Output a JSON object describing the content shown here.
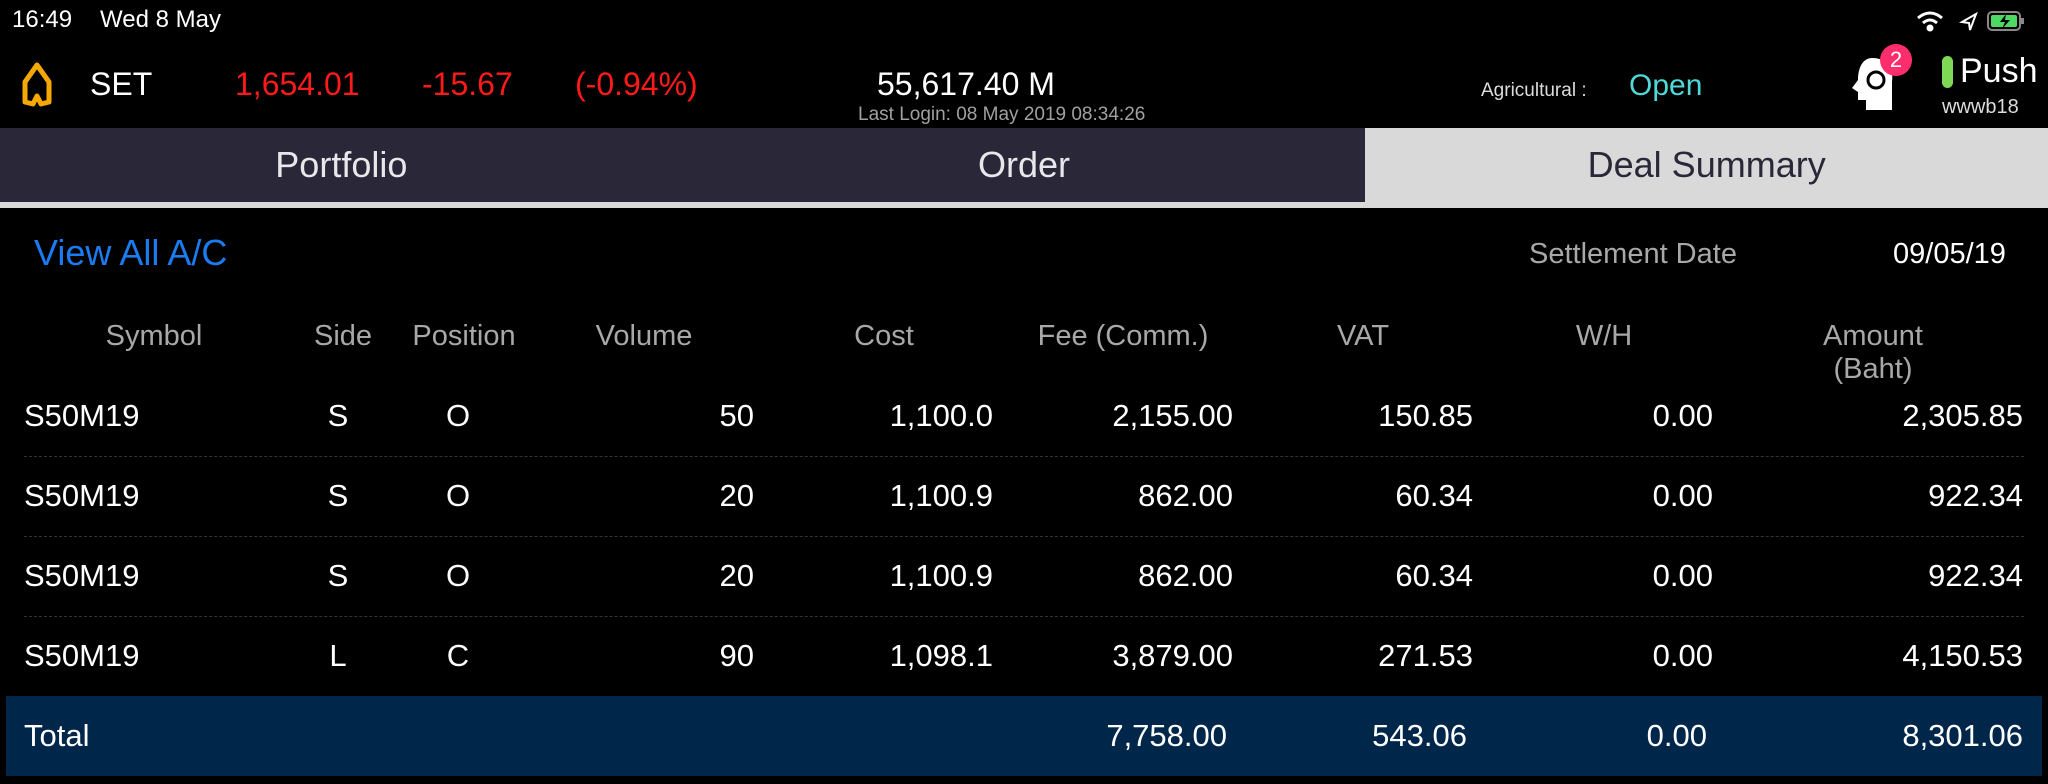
{
  "status_bar": {
    "time": "16:49",
    "date": "Wed 8 May",
    "icons": [
      "wifi-icon",
      "location-arrow-icon",
      "battery-charging-icon"
    ]
  },
  "header": {
    "index_name": "SET",
    "index_value": "1,654.01",
    "change": "-15.67",
    "change_pct": "(-0.94%)",
    "value": "55,617.40 M",
    "last_login": "Last Login: 08 May 2019 08:34:26",
    "market_label": "Agricultural :",
    "market_status": "Open",
    "notification_count": "2",
    "push_label": "Push",
    "username": "wwwb18",
    "colors": {
      "negative": "#ff1a1a",
      "open": "#4fd8d8",
      "link": "#1a7cf0",
      "push_indicator": "#7ed957",
      "badge": "#ff2d6b",
      "logo": "#f5a800"
    }
  },
  "tabs": [
    {
      "label": "Portfolio",
      "active": false
    },
    {
      "label": "Order",
      "active": false
    },
    {
      "label": "Deal Summary",
      "active": true
    }
  ],
  "summary": {
    "view_all_label": "View All A/C",
    "settlement_label": "Settlement Date",
    "settlement_date": "09/05/19"
  },
  "table": {
    "columns": [
      "Symbol",
      "Side",
      "Position",
      "Volume",
      "Cost",
      "Fee (Comm.)",
      "VAT",
      "W/H",
      "Amount (Baht)"
    ],
    "rows": [
      [
        "S50M19",
        "S",
        "O",
        "50",
        "1,100.0",
        "2,155.00",
        "150.85",
        "0.00",
        "2,305.85"
      ],
      [
        "S50M19",
        "S",
        "O",
        "20",
        "1,100.9",
        "862.00",
        "60.34",
        "0.00",
        "922.34"
      ],
      [
        "S50M19",
        "S",
        "O",
        "20",
        "1,100.9",
        "862.00",
        "60.34",
        "0.00",
        "922.34"
      ],
      [
        "S50M19",
        "L",
        "C",
        "90",
        "1,098.1",
        "3,879.00",
        "271.53",
        "0.00",
        "4,150.53"
      ]
    ],
    "total": {
      "label": "Total",
      "fee": "7,758.00",
      "vat": "543.06",
      "wh": "0.00",
      "amount": "8,301.06"
    }
  }
}
